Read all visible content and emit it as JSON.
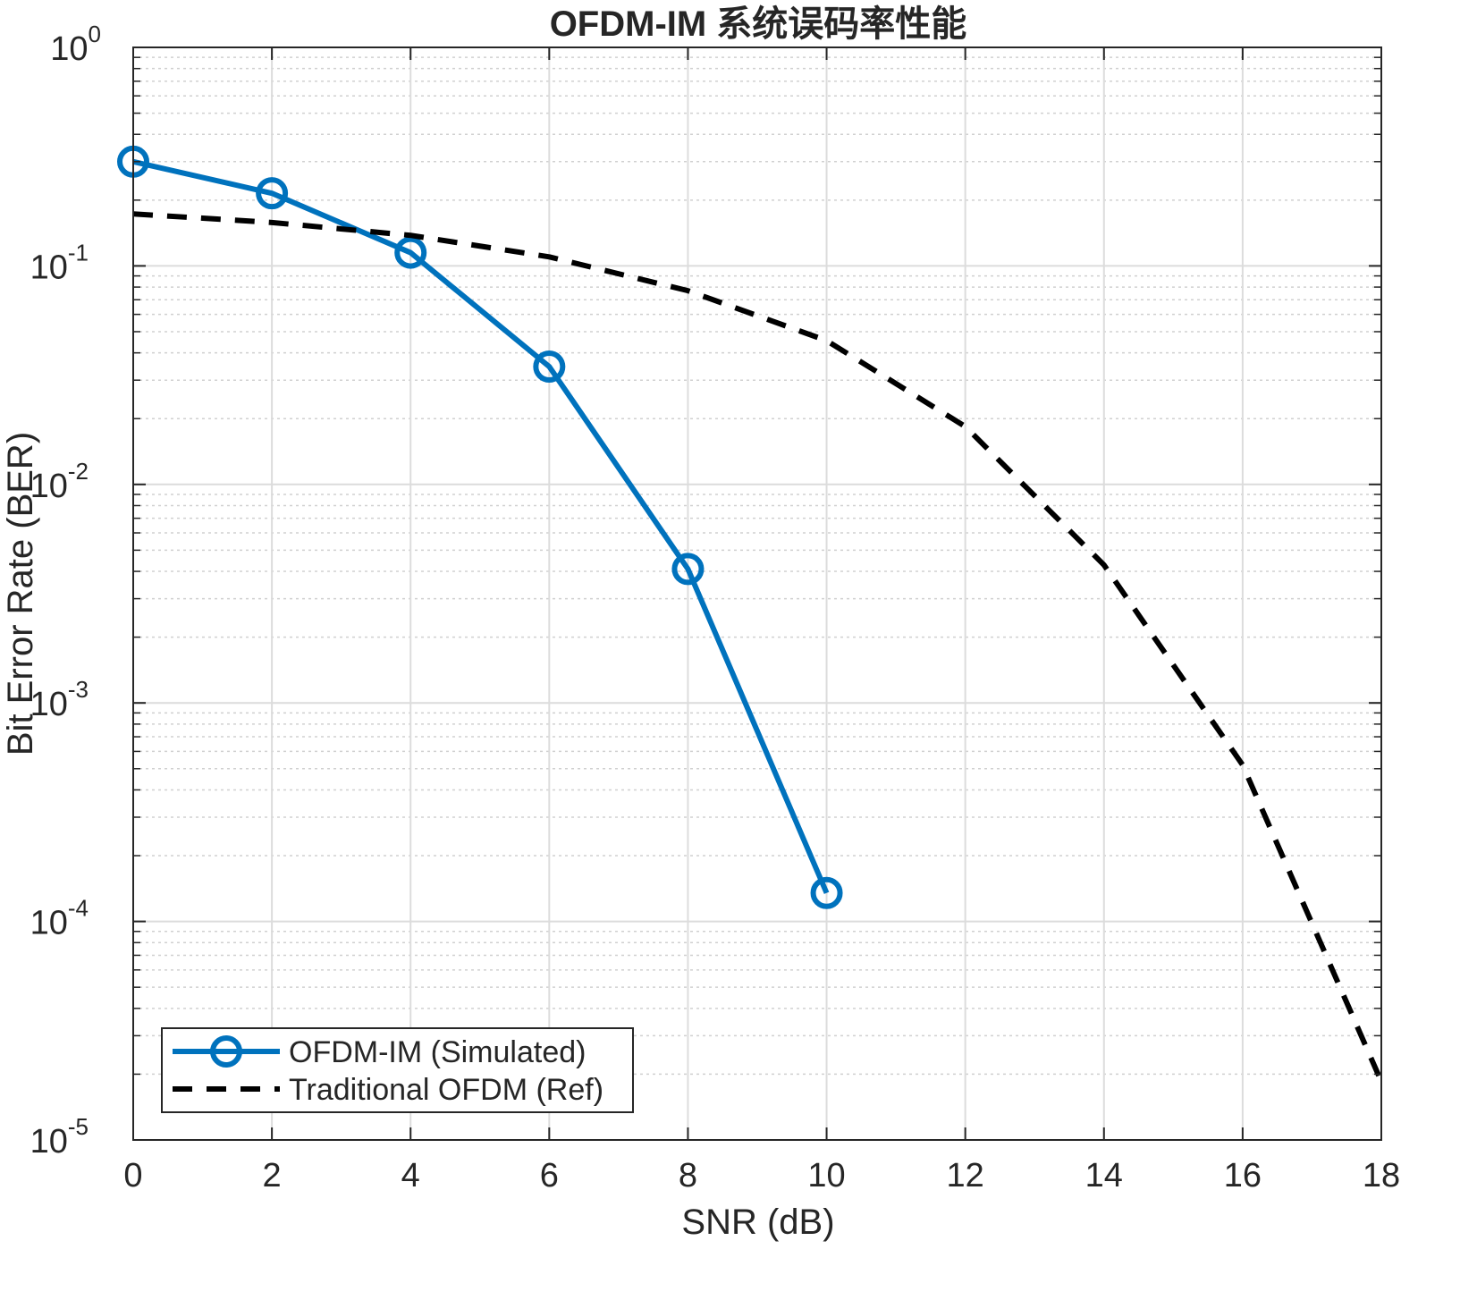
{
  "chart_data": {
    "type": "line",
    "title": "OFDM-IM 系统误码率性能",
    "xlabel": "SNR (dB)",
    "ylabel": "Bit Error Rate (BER)",
    "xlim": [
      0,
      18
    ],
    "ylim": [
      1e-05,
      1
    ],
    "yscale": "log",
    "grid": true,
    "minor_grid": true,
    "legend_position": "bottom-left",
    "xticks": [
      0,
      2,
      4,
      6,
      8,
      10,
      12,
      14,
      16,
      18
    ],
    "yticks": [
      {
        "exp": "0"
      },
      {
        "exp": "-1"
      },
      {
        "exp": "-2"
      },
      {
        "exp": "-3"
      },
      {
        "exp": "-4"
      },
      {
        "exp": "-5"
      }
    ],
    "series": [
      {
        "name": "OFDM-IM (Simulated)",
        "color": "#0072BD",
        "style": "solid",
        "marker": "circle",
        "x": [
          0,
          2,
          4,
          6,
          8,
          10
        ],
        "y": [
          0.3,
          0.215,
          0.115,
          0.0346,
          0.0041,
          0.000135
        ]
      },
      {
        "name": "Traditional OFDM (Ref)",
        "color": "#000000",
        "style": "dashed",
        "marker": "none",
        "x": [
          0,
          2,
          4,
          6,
          8,
          10,
          12,
          14,
          16,
          18
        ],
        "y": [
          0.173,
          0.158,
          0.138,
          0.11,
          0.077,
          0.0455,
          0.0184,
          0.00428,
          0.00052,
          1.85e-05
        ]
      }
    ]
  }
}
